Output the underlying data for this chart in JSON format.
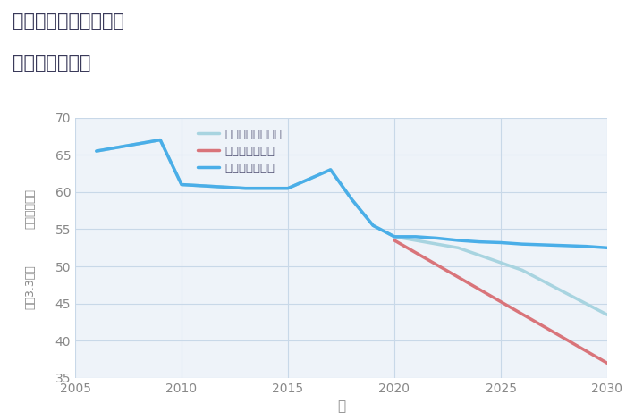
{
  "title_line1": "愛知県岡崎市針崎町の",
  "title_line2": "土地の価格推移",
  "xlabel": "年",
  "ylabel_top": "単価（万円）",
  "ylabel_bottom": "坪（3.3㎡）",
  "ylim": [
    35,
    70
  ],
  "yticks": [
    35,
    40,
    45,
    50,
    55,
    60,
    65,
    70
  ],
  "xlim": [
    2005,
    2030
  ],
  "xticks": [
    2005,
    2010,
    2015,
    2020,
    2025,
    2030
  ],
  "good_scenario": {
    "label": "グッドシナリオ",
    "color": "#4aaee8",
    "linewidth": 2.5,
    "x": [
      2006,
      2009,
      2010,
      2013,
      2015,
      2017,
      2018,
      2019,
      2020,
      2021,
      2022,
      2023,
      2024,
      2025,
      2026,
      2027,
      2028,
      2029,
      2030
    ],
    "y": [
      65.5,
      67.0,
      61.0,
      60.5,
      60.5,
      63.0,
      59.0,
      55.5,
      54.0,
      54.0,
      53.8,
      53.5,
      53.3,
      53.2,
      53.0,
      52.9,
      52.8,
      52.7,
      52.5
    ]
  },
  "bad_scenario": {
    "label": "バッドシナリオ",
    "color": "#d9747a",
    "linewidth": 2.5,
    "x": [
      2020,
      2030
    ],
    "y": [
      53.5,
      37.0
    ]
  },
  "normal_scenario": {
    "label": "ノーマルシナリオ",
    "color": "#a8d4e0",
    "linewidth": 2.5,
    "x": [
      2006,
      2009,
      2010,
      2013,
      2015,
      2017,
      2018,
      2019,
      2020,
      2021,
      2022,
      2023,
      2024,
      2025,
      2026,
      2027,
      2028,
      2029,
      2030
    ],
    "y": [
      65.5,
      67.0,
      61.0,
      60.5,
      60.5,
      63.0,
      59.0,
      55.5,
      54.0,
      53.5,
      53.0,
      52.5,
      51.5,
      50.5,
      49.5,
      48.0,
      46.5,
      45.0,
      43.5
    ]
  },
  "background_color": "#eef3f9",
  "plot_bg_color": "#eef3f9",
  "grid_color": "#c8d8e8",
  "title_color": "#3a3a5a",
  "axis_color": "#888888",
  "tick_color": "#888888",
  "legend_label_color": "#555577"
}
